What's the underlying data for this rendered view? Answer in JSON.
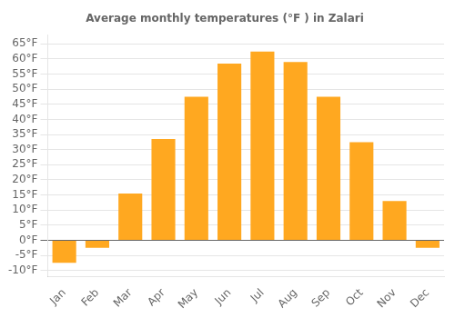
{
  "chart_data": {
    "type": "bar",
    "title": "Average monthly temperatures (°F ) in Zalari",
    "categories": [
      "Jan",
      "Feb",
      "Mar",
      "Apr",
      "May",
      "Jun",
      "Jul",
      "Aug",
      "Sep",
      "Oct",
      "Nov",
      "Dec"
    ],
    "values": [
      -7.5,
      -2.5,
      15.5,
      33.5,
      47.5,
      58.5,
      62.5,
      59.0,
      47.5,
      32.5,
      13.0,
      -2.5
    ],
    "color": "#FFA820",
    "ylim": [
      -12,
      68
    ],
    "yticks": [
      {
        "value": -10,
        "label": "-10°F"
      },
      {
        "value": -5,
        "label": "-5°F"
      },
      {
        "value": 0,
        "label": "0°F"
      },
      {
        "value": 5,
        "label": "5°F"
      },
      {
        "value": 10,
        "label": "10°F"
      },
      {
        "value": 15,
        "label": "15°F"
      },
      {
        "value": 20,
        "label": "20°F"
      },
      {
        "value": 25,
        "label": "25°F"
      },
      {
        "value": 30,
        "label": "30°F"
      },
      {
        "value": 35,
        "label": "35°F"
      },
      {
        "value": 40,
        "label": "40°F"
      },
      {
        "value": 45,
        "label": "45°F"
      },
      {
        "value": 50,
        "label": "50°F"
      },
      {
        "value": 55,
        "label": "55°F"
      },
      {
        "value": 60,
        "label": "60°F"
      },
      {
        "value": 65,
        "label": "65°F"
      }
    ],
    "grid": true
  }
}
